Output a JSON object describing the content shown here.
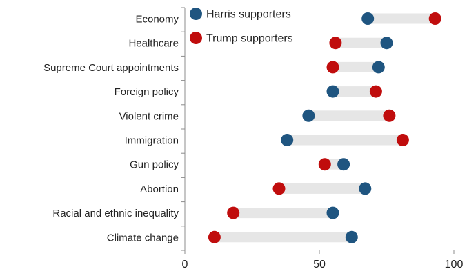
{
  "chart_data": {
    "type": "dot-plot",
    "categories": [
      "Economy",
      "Healthcare",
      "Supreme Court appointments",
      "Foreign policy",
      "Violent crime",
      "Immigration",
      "Gun policy",
      "Abortion",
      "Racial and ethnic inequality",
      "Climate change"
    ],
    "series": [
      {
        "name": "Harris supporters",
        "color": "#1f5580",
        "values": [
          68,
          75,
          72,
          55,
          46,
          38,
          59,
          67,
          55,
          62
        ]
      },
      {
        "name": "Trump supporters",
        "color": "#c00d0d",
        "values": [
          93,
          56,
          55,
          71,
          76,
          81,
          52,
          35,
          18,
          11
        ]
      }
    ],
    "xlim": [
      0,
      100
    ],
    "xticks": [
      0,
      50,
      100
    ],
    "connector_color": "#e6e6e6",
    "legend_position": "top-left inside plot"
  }
}
